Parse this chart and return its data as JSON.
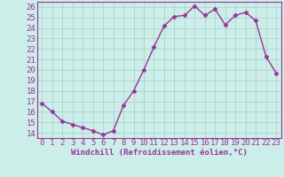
{
  "x": [
    0,
    1,
    2,
    3,
    4,
    5,
    6,
    7,
    8,
    9,
    10,
    11,
    12,
    13,
    14,
    15,
    16,
    17,
    18,
    19,
    20,
    21,
    22,
    23
  ],
  "y": [
    16.8,
    16.0,
    15.1,
    14.8,
    14.5,
    14.2,
    13.8,
    14.2,
    16.6,
    18.0,
    20.0,
    22.2,
    24.2,
    25.1,
    25.2,
    26.1,
    25.2,
    25.8,
    24.3,
    25.2,
    25.5,
    24.7,
    21.3,
    19.7
  ],
  "line_color": "#993399",
  "marker": "D",
  "marker_size": 2.5,
  "bg_color": "#cceee8",
  "grid_color": "#aacccc",
  "xlabel": "Windchill (Refroidissement éolien,°C)",
  "ylim": [
    13.5,
    26.5
  ],
  "xlim": [
    -0.5,
    23.5
  ],
  "yticks": [
    14,
    15,
    16,
    17,
    18,
    19,
    20,
    21,
    22,
    23,
    24,
    25,
    26
  ],
  "xticks": [
    0,
    1,
    2,
    3,
    4,
    5,
    6,
    7,
    8,
    9,
    10,
    11,
    12,
    13,
    14,
    15,
    16,
    17,
    18,
    19,
    20,
    21,
    22,
    23
  ],
  "xlabel_fontsize": 6.5,
  "tick_fontsize": 6.5,
  "line_width": 1.0
}
